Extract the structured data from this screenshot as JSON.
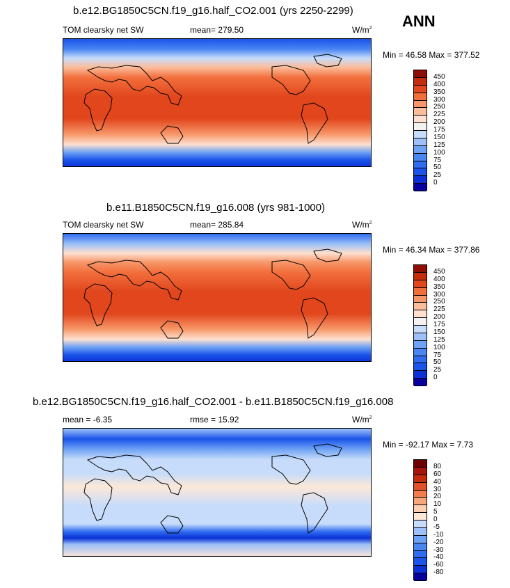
{
  "season": "ANN",
  "panels": [
    {
      "title": "b.e12.BG1850C5CN.f19_g16.half_CO2.001 (yrs 2250-2299)",
      "left_label": "TOM clearsky net SW",
      "center_label": "mean= 279.50",
      "units": "W/m",
      "units_sup": "2",
      "minmax": "Min =  46.58 Max = 377.52"
    },
    {
      "title": "b.e11.B1850C5CN.f19_g16.008 (yrs 981-1000)",
      "left_label": "TOM clearsky net SW",
      "center_label": "mean= 285.84",
      "units": "W/m",
      "units_sup": "2",
      "minmax": "Min =  46.34 Max = 377.86"
    },
    {
      "title": "b.e12.BG1850C5CN.f19_g16.half_CO2.001 - b.e11.B1850C5CN.f19_g16.008",
      "left_label": "mean =  -6.35",
      "center_label": "rmse =  15.92",
      "units": "W/m",
      "units_sup": "2",
      "minmax": "Min = -92.17 Max =   7.73"
    }
  ],
  "chart_data": [
    {
      "type": "heatmap",
      "title": "b.e12.BG1850C5CN.f19_g16.half_CO2.001 (yrs 2250-2299)",
      "variable": "TOM clearsky net SW",
      "units": "W/m2",
      "mean": 279.5,
      "min": 46.58,
      "max": 377.52,
      "levels": [
        0,
        25,
        50,
        75,
        100,
        125,
        150,
        175,
        200,
        225,
        250,
        300,
        350,
        400,
        450
      ],
      "colors": [
        "#08009c",
        "#0a30d6",
        "#1b54ea",
        "#2f6cf0",
        "#4a86f2",
        "#6ea2f4",
        "#9cc0f7",
        "#c7dcfa",
        "#f2f2f0",
        "#fde0cf",
        "#fbbd9b",
        "#f79769",
        "#f26f3c",
        "#e1461d",
        "#c42c0c",
        "#8d0e04"
      ]
    },
    {
      "type": "heatmap",
      "title": "b.e11.B1850C5CN.f19_g16.008 (yrs 981-1000)",
      "variable": "TOM clearsky net SW",
      "units": "W/m2",
      "mean": 285.84,
      "min": 46.34,
      "max": 377.86,
      "levels": [
        0,
        25,
        50,
        75,
        100,
        125,
        150,
        175,
        200,
        225,
        250,
        300,
        350,
        400,
        450
      ],
      "colors": [
        "#08009c",
        "#0a30d6",
        "#1b54ea",
        "#2f6cf0",
        "#4a86f2",
        "#6ea2f4",
        "#9cc0f7",
        "#c7dcfa",
        "#f2f2f0",
        "#fde0cf",
        "#fbbd9b",
        "#f79769",
        "#f26f3c",
        "#e1461d",
        "#c42c0c",
        "#8d0e04"
      ]
    },
    {
      "type": "heatmap",
      "title": "b.e12.BG1850C5CN.f19_g16.half_CO2.001 - b.e11.B1850C5CN.f19_g16.008",
      "units": "W/m2",
      "mean": -6.35,
      "rmse": 15.92,
      "min": -92.17,
      "max": 7.73,
      "levels": [
        -80,
        -60,
        -40,
        -30,
        -20,
        -10,
        -5,
        0,
        5,
        10,
        20,
        30,
        40,
        60,
        80
      ],
      "colors": [
        "#08009c",
        "#0a30d6",
        "#1b54ea",
        "#2f6cf0",
        "#4a86f2",
        "#6ea2f4",
        "#9cc0f7",
        "#c7dcfa",
        "#fde8d8",
        "#fbcfb0",
        "#f7a57b",
        "#f27d4b",
        "#e2522a",
        "#c42c0c",
        "#a8140a",
        "#6d0000"
      ]
    }
  ]
}
